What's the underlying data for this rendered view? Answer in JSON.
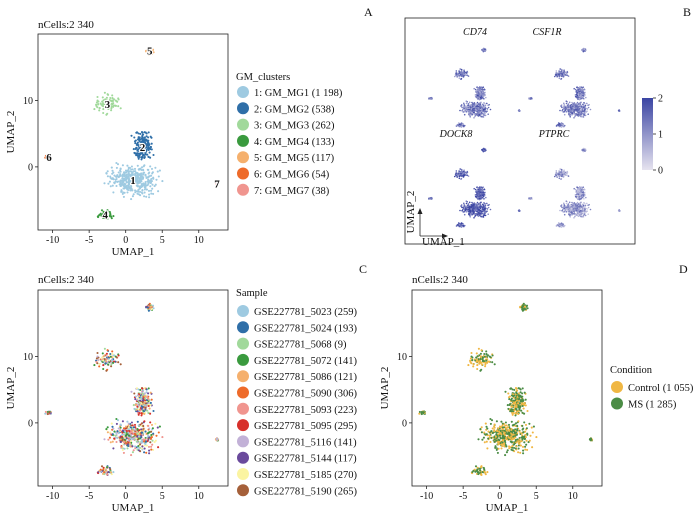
{
  "panels": {
    "A": {
      "letter": "A",
      "title": "nCells:2 340",
      "xlabel": "UMAP_1",
      "ylabel": "UMAP_2",
      "legend_title": "GM_clusters"
    },
    "B": {
      "letter": "B",
      "xlabel": "UMAP_1",
      "ylabel": "UMAP_2"
    },
    "C": {
      "letter": "C",
      "title": "nCells:2 340",
      "xlabel": "UMAP_1",
      "ylabel": "UMAP_2",
      "legend_title": "Sample"
    },
    "D": {
      "letter": "D",
      "title": "nCells:2 340",
      "xlabel": "UMAP_1",
      "ylabel": "UMAP_2",
      "legend_title": "Condition"
    }
  },
  "chart_data": [
    {
      "panel": "A",
      "type": "scatter",
      "title": "nCells:2 340",
      "xlabel": "UMAP_1",
      "ylabel": "UMAP_2",
      "xlim": [
        -12,
        14
      ],
      "ylim": [
        -9.5,
        20
      ],
      "xticks": [
        "-10",
        "-5",
        "0",
        "5",
        "10"
      ],
      "yticks": [
        "0",
        "10"
      ],
      "legend_placement": "right",
      "series": [
        {
          "name": "1: GM_MG1 (1 198)",
          "color": "#9ecae1",
          "label": "1",
          "center": [
            1,
            -2
          ],
          "spread": [
            3,
            2
          ],
          "n": 1198
        },
        {
          "name": "2: GM_MG2 (538)",
          "color": "#2f6fa8",
          "label": "2",
          "center": [
            2.3,
            3
          ],
          "spread": [
            1.2,
            2
          ],
          "n": 538
        },
        {
          "name": "3: GM_MG3 (262)",
          "color": "#a1d99b",
          "label": "3",
          "center": [
            -2.5,
            9.5
          ],
          "spread": [
            1.5,
            1.3
          ],
          "n": 262
        },
        {
          "name": "4: GM_MG4 (133)",
          "color": "#3a9a3e",
          "label": "4",
          "center": [
            -2.8,
            -7.2
          ],
          "spread": [
            0.9,
            0.7
          ],
          "n": 133
        },
        {
          "name": "5: GM_MG5 (117)",
          "color": "#f5b06d",
          "label": "5",
          "center": [
            3.3,
            17.5
          ],
          "spread": [
            0.5,
            0.5
          ],
          "n": 117
        },
        {
          "name": "6: GM_MG6 (54)",
          "color": "#ee6b2a",
          "label": "6",
          "center": [
            -10.5,
            1.5
          ],
          "spread": [
            0.4,
            0.3
          ],
          "n": 54
        },
        {
          "name": "7: GM_MG7 (38)",
          "color": "#f0958f",
          "label": "7",
          "center": [
            12.5,
            -2.5
          ],
          "spread": [
            0.15,
            0.2
          ],
          "n": 38
        }
      ]
    },
    {
      "panel": "B",
      "type": "scatter",
      "subplots": [
        "CD74",
        "CSF1R",
        "DOCK8",
        "PTPRC"
      ],
      "xlabel": "UMAP_1",
      "ylabel": "UMAP_2",
      "colorbar": {
        "min": 0,
        "max": 2,
        "ticks": [
          "0",
          "1",
          "2"
        ],
        "low_color": "#e6e3ef",
        "high_color": "#3b45a3"
      }
    },
    {
      "panel": "C",
      "type": "scatter",
      "title": "nCells:2 340",
      "xlabel": "UMAP_1",
      "ylabel": "UMAP_2",
      "xlim": [
        -12,
        14
      ],
      "ylim": [
        -9.5,
        20
      ],
      "xticks": [
        "-10",
        "-5",
        "0",
        "5",
        "10"
      ],
      "yticks": [
        "0",
        "10"
      ],
      "legend_placement": "right",
      "series": [
        {
          "name": "GSE227781_5023 (259)",
          "color": "#9ecae1",
          "n": 259
        },
        {
          "name": "GSE227781_5024 (193)",
          "color": "#2f6fa8",
          "n": 193
        },
        {
          "name": "GSE227781_5068 (9)",
          "color": "#a1d99b",
          "n": 9
        },
        {
          "name": "GSE227781_5072 (141)",
          "color": "#3a9a3e",
          "n": 141
        },
        {
          "name": "GSE227781_5086 (121)",
          "color": "#f5b06d",
          "n": 121
        },
        {
          "name": "GSE227781_5090 (306)",
          "color": "#ee6b2a",
          "n": 306
        },
        {
          "name": "GSE227781_5093 (223)",
          "color": "#f0958f",
          "n": 223
        },
        {
          "name": "GSE227781_5095 (295)",
          "color": "#d7302b",
          "n": 295
        },
        {
          "name": "GSE227781_5116 (141)",
          "color": "#c2b1d7",
          "n": 141
        },
        {
          "name": "GSE227781_5144 (117)",
          "color": "#6a4a9c",
          "n": 117
        },
        {
          "name": "GSE227781_5185 (270)",
          "color": "#fbf4a1",
          "n": 270
        },
        {
          "name": "GSE227781_5190 (265)",
          "color": "#a5603a",
          "n": 265
        }
      ]
    },
    {
      "panel": "D",
      "type": "scatter",
      "title": "nCells:2 340",
      "xlabel": "UMAP_1",
      "ylabel": "UMAP_2",
      "xlim": [
        -12,
        14
      ],
      "ylim": [
        -9.5,
        20
      ],
      "xticks": [
        "-10",
        "-5",
        "0",
        "5",
        "10"
      ],
      "yticks": [
        "0",
        "10"
      ],
      "legend_placement": "right",
      "series": [
        {
          "name": "Control (1 055)",
          "color": "#f0b743",
          "n": 1055
        },
        {
          "name": "MS (1 285)",
          "color": "#4b8c45",
          "n": 1285
        }
      ]
    }
  ]
}
